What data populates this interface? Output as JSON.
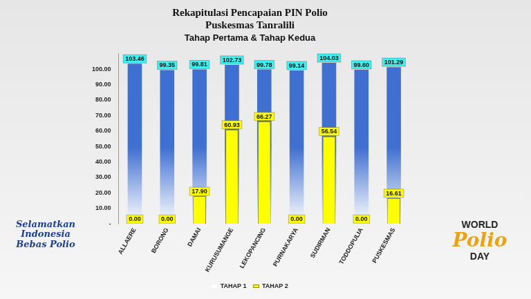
{
  "chart_data": {
    "type": "bar",
    "title": "Rekapitulasi Pencapaian PIN Polio\nPuskesmas Tanralili",
    "subtitle": "Tahap Pertama & Tahap Kedua",
    "categories": [
      "ALLAERE",
      "BORONG",
      "DAMAI",
      "KURUSUMANGE",
      "LEKOPANCING",
      "PURNAKARYA",
      "SUDIRMAN",
      "TODDOPULIA",
      "PUSKESMAS"
    ],
    "series": [
      {
        "name": "TAHAP 1",
        "color": "#3f6fd1",
        "values": [
          103.46,
          99.35,
          99.81,
          102.73,
          99.78,
          99.14,
          104.03,
          99.6,
          101.29
        ],
        "value_labels": [
          "103.46",
          "99.35",
          "99.81",
          "102.73",
          "99.78",
          "99.14",
          "104.03",
          "99.60",
          "101.29"
        ]
      },
      {
        "name": "TAHAP 2",
        "color": "#ffff00",
        "values": [
          0.0,
          0.0,
          17.9,
          60.93,
          66.27,
          0.0,
          56.54,
          0.0,
          16.61
        ],
        "value_labels": [
          "0.00",
          "0.00",
          "17.90",
          "60.93",
          "66.27",
          "0.00",
          "56.54",
          "0.00",
          "16.61"
        ]
      }
    ],
    "ylim": [
      0,
      110
    ],
    "yticks": [
      {
        "value": 0,
        "label": "-"
      },
      {
        "value": 10,
        "label": "10.00"
      },
      {
        "value": 20,
        "label": "20.00"
      },
      {
        "value": 30,
        "label": "30.00"
      },
      {
        "value": 40,
        "label": "40.00"
      },
      {
        "value": 50,
        "label": "50.00"
      },
      {
        "value": 60,
        "label": "60.00"
      },
      {
        "value": 70,
        "label": "70.00"
      },
      {
        "value": 80,
        "label": "80.00"
      },
      {
        "value": 90,
        "label": "90.00"
      },
      {
        "value": 100,
        "label": "100.00"
      }
    ],
    "grid": false,
    "legend": "bottom",
    "data_labels": true,
    "annotations": [
      "Selamatkan Indonesia Bebas Polio",
      "WORLD Polio DAY"
    ]
  }
}
